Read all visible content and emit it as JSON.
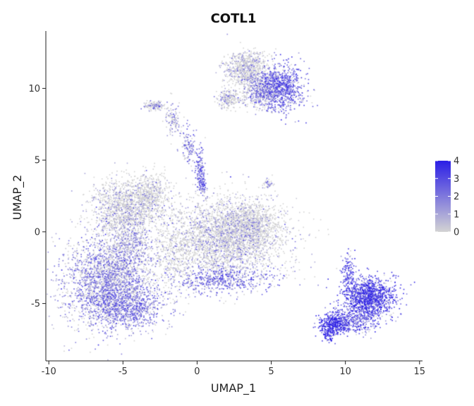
{
  "chart_data": {
    "type": "scatter",
    "title": "COTL1",
    "xlabel": "UMAP_1",
    "ylabel": "UMAP_2",
    "xlim": [
      -10.2,
      15.2
    ],
    "ylim": [
      -9,
      14
    ],
    "x_ticks": [
      -10,
      -5,
      0,
      5,
      10,
      15
    ],
    "x_tick_labels": [
      "-10",
      "-5",
      "0",
      "5",
      "10",
      "15"
    ],
    "y_ticks": [
      -5,
      0,
      5,
      10
    ],
    "y_tick_labels": [
      "-5",
      "0",
      "5",
      "10"
    ],
    "grid": false,
    "legend": {
      "placement": "right",
      "type": "colorbar",
      "min": 0,
      "max": 4,
      "ticks": [
        0,
        1,
        2,
        3,
        4
      ],
      "tick_labels": [
        "0",
        "1",
        "2",
        "3",
        "4"
      ],
      "low_color": "#d3d3d3",
      "high_color": "#2b1ee6"
    },
    "clusters": [
      {
        "cx": -5.9,
        "cy": -3.4,
        "sx": 1.5,
        "sy": 1.6,
        "n": 2600,
        "expr": 1.6
      },
      {
        "cx": -4.6,
        "cy": -5.3,
        "sx": 1.3,
        "sy": 0.7,
        "n": 700,
        "expr": 1.9
      },
      {
        "cx": -4.6,
        "cy": -0.9,
        "sx": 0.7,
        "sy": 1.0,
        "n": 400,
        "expr": 1.2
      },
      {
        "cx": -4.9,
        "cy": 1.6,
        "sx": 1.1,
        "sy": 1.0,
        "n": 1200,
        "expr": 0.7
      },
      {
        "cx": -3.2,
        "cy": 2.6,
        "sx": 0.7,
        "sy": 0.7,
        "n": 500,
        "expr": 0.5
      },
      {
        "cx": 1.9,
        "cy": -0.4,
        "sx": 2.0,
        "sy": 1.4,
        "n": 3000,
        "expr": 0.8
      },
      {
        "cx": 3.6,
        "cy": 0.6,
        "sx": 0.8,
        "sy": 0.7,
        "n": 600,
        "expr": 0.6
      },
      {
        "cx": 1.5,
        "cy": -3.3,
        "sx": 1.5,
        "sy": 0.5,
        "n": 500,
        "expr": 2.2
      },
      {
        "cx": -1.6,
        "cy": -1.8,
        "sx": 0.8,
        "sy": 1.2,
        "n": 300,
        "expr": 0.3
      },
      {
        "cx": 3.3,
        "cy": 11.4,
        "sx": 0.7,
        "sy": 0.6,
        "n": 700,
        "expr": 0.8
      },
      {
        "cx": 5.6,
        "cy": 10.0,
        "sx": 0.8,
        "sy": 0.8,
        "n": 900,
        "expr": 2.3
      },
      {
        "cx": 4.2,
        "cy": 9.8,
        "sx": 0.7,
        "sy": 0.6,
        "n": 500,
        "expr": 1.3
      },
      {
        "cx": 2.1,
        "cy": 9.3,
        "sx": 0.4,
        "sy": 0.4,
        "n": 200,
        "expr": 0.8
      },
      {
        "cx": -2.9,
        "cy": 8.8,
        "sx": 0.4,
        "sy": 0.15,
        "n": 140,
        "expr": 1.1
      },
      {
        "cx": -1.6,
        "cy": 7.8,
        "sx": 0.25,
        "sy": 0.5,
        "n": 120,
        "expr": 1.2
      },
      {
        "cx": -0.6,
        "cy": 6.0,
        "sx": 0.25,
        "sy": 0.6,
        "n": 120,
        "expr": 1.7
      },
      {
        "cx": 0.2,
        "cy": 4.4,
        "sx": 0.15,
        "sy": 0.7,
        "n": 140,
        "expr": 2.2
      },
      {
        "cx": 0.4,
        "cy": 3.2,
        "sx": 0.12,
        "sy": 0.25,
        "n": 60,
        "expr": 2.4
      },
      {
        "cx": 4.8,
        "cy": 3.3,
        "sx": 0.2,
        "sy": 0.15,
        "n": 40,
        "expr": 1.1
      },
      {
        "cx": 11.6,
        "cy": -4.6,
        "sx": 0.9,
        "sy": 0.7,
        "n": 1300,
        "expr": 3.0
      },
      {
        "cx": 9.3,
        "cy": -6.4,
        "sx": 0.5,
        "sy": 0.4,
        "n": 400,
        "expr": 3.3
      },
      {
        "cx": 10.6,
        "cy": -6.3,
        "sx": 0.8,
        "sy": 0.4,
        "n": 300,
        "expr": 2.2
      },
      {
        "cx": 10.2,
        "cy": -2.9,
        "sx": 0.2,
        "sy": 0.7,
        "n": 120,
        "expr": 2.8
      },
      {
        "cx": 8.8,
        "cy": -7.1,
        "sx": 0.2,
        "sy": 0.3,
        "n": 80,
        "expr": 3.6
      }
    ]
  }
}
